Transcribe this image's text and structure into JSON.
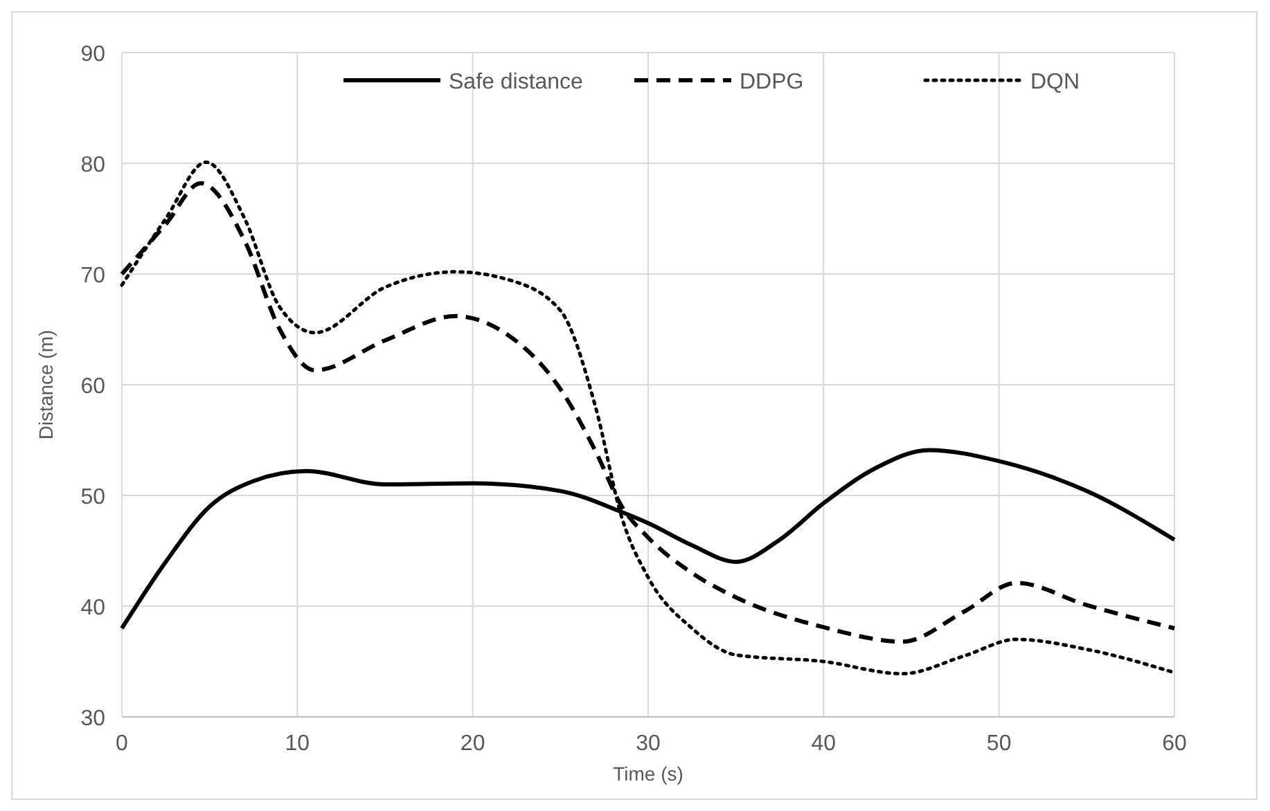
{
  "chart_data": {
    "type": "line",
    "xlabel": "Time (s)",
    "ylabel": "Distance (m)",
    "xlim": [
      0,
      60
    ],
    "xticks": [
      0,
      10,
      20,
      30,
      40,
      50,
      60
    ],
    "ylim": [
      30,
      90
    ],
    "yticks": [
      30,
      40,
      50,
      60,
      70,
      80,
      90
    ],
    "grid": true,
    "legend": "top right",
    "series": [
      {
        "name": "Safe distance",
        "color": "#000000",
        "line_style": "solid",
        "x": [
          0,
          2.5,
          5,
          7.5,
          10.5,
          15,
          20,
          25,
          28.5,
          30,
          32.5,
          35,
          37.5,
          40,
          43,
          46,
          50,
          55,
          60
        ],
        "values": [
          38,
          44,
          49,
          51.3,
          52.2,
          51,
          51.1,
          50.4,
          48.5,
          47.5,
          45.5,
          44,
          46,
          49.3,
          52.5,
          54.1,
          53.1,
          50.4,
          46
        ]
      },
      {
        "name": "DDPG",
        "color": "#000000",
        "line_style": "dashed",
        "x": [
          0,
          2.5,
          4.5,
          7,
          9,
          11,
          15,
          19,
          22,
          25,
          27,
          28.5,
          30,
          32.5,
          35,
          40,
          44.5,
          48,
          51,
          55,
          60
        ],
        "values": [
          70,
          74.5,
          78.2,
          73,
          65,
          61.3,
          64,
          66.2,
          64.5,
          59.6,
          54,
          49,
          46.2,
          43,
          40.8,
          38.1,
          36.8,
          39.5,
          42.1,
          40.1,
          38
        ]
      },
      {
        "name": "DQN",
        "color": "#000000",
        "line_style": "dotted",
        "x": [
          0,
          2.5,
          4.8,
          7,
          9,
          11,
          15,
          19,
          22,
          25,
          27,
          28.5,
          30,
          32.5,
          35,
          40,
          44.5,
          48,
          51,
          55,
          60
        ],
        "values": [
          69,
          75,
          80.1,
          75,
          67,
          64.7,
          68.8,
          70.2,
          69.5,
          66.7,
          58,
          48,
          42.6,
          38,
          35.6,
          35,
          33.9,
          35.5,
          37,
          36.1,
          34
        ]
      }
    ]
  }
}
